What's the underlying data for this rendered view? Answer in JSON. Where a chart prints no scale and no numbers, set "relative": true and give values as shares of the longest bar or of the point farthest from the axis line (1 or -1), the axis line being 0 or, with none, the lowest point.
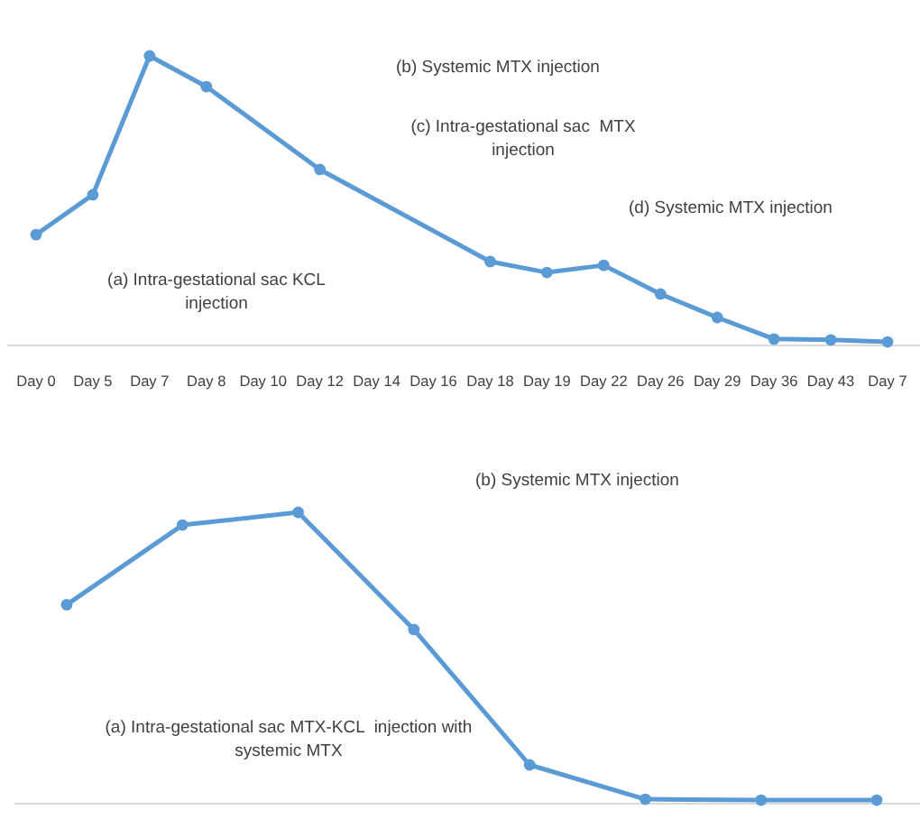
{
  "chart_data": [
    {
      "type": "line",
      "relative": true,
      "marker": "circle",
      "categories": [
        "Day 0",
        "Day 5",
        "Day 7",
        "Day 8",
        "Day 10",
        "Day 12",
        "Day 14",
        "Day 16",
        "Day 18",
        "Day 19",
        "Day 22",
        "Day 26",
        "Day 29",
        "Day 36",
        "Day 43",
        "Day 7"
      ],
      "series": [
        {
          "color": "#5b9bd5",
          "values": [
            0.377,
            0.516,
            1,
            0.893,
            null,
            0.604,
            null,
            null,
            0.283,
            0.245,
            0.27,
            0.17,
            0.088,
            0.013,
            0.01,
            0.003
          ]
        }
      ],
      "annotations": [
        "(b) Systemic MTX injection",
        "(c) Intra-gestational sac  MTX injection",
        "(d) Systemic MTX injection",
        "(a) Intra-gestational sac KCL injection"
      ]
    },
    {
      "type": "line",
      "relative": true,
      "marker": "circle",
      "categories": [
        null,
        null,
        null,
        null,
        null,
        null,
        null,
        null
      ],
      "series": [
        {
          "color": "#5b9bd5",
          "values": [
            0.68,
            0.956,
            1,
            0.594,
            0.125,
            0.006,
            0.003,
            0.003
          ]
        }
      ],
      "annotations": [
        "(b) Systemic MTX injection",
        "(a) Intra-gestational sac MTX-KCL  injection with systemic MTX"
      ]
    }
  ]
}
